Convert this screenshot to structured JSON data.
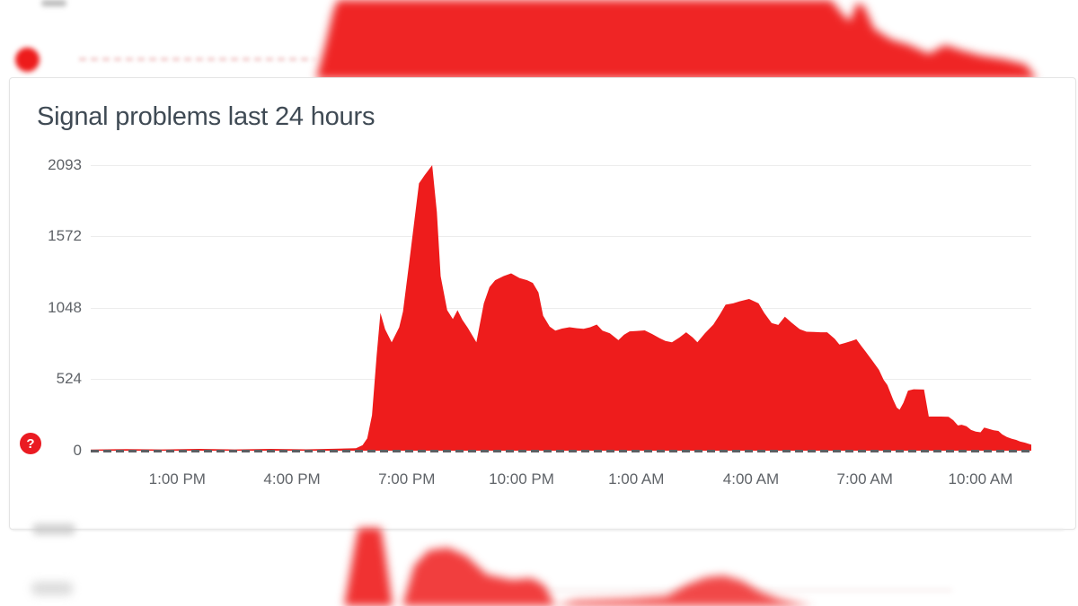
{
  "card": {
    "title": "Signal problems last 24 hours",
    "help_glyph": "?"
  },
  "colors": {
    "series_red": "#ee1c1c",
    "help_badge_red": "#ea1b22",
    "title_text": "#3f4a54",
    "tick_text": "#5f6368",
    "gridline": "#ececec",
    "baseline_dash": "#5c5e62",
    "card_border": "#e4e4e4"
  },
  "chart_data": {
    "type": "area",
    "title": "Signal problems last 24 hours",
    "xlabel": "",
    "ylabel": "",
    "ylim": [
      0,
      2093
    ],
    "grid": "horizontal",
    "legend": "none",
    "fill_color": "#ee1c1c",
    "baseline_style": "dashed dark gray zero line drawn over series",
    "y_tick_labels": [
      "2093",
      "1572",
      "1048",
      "524",
      "0"
    ],
    "y_tick_values": [
      2093,
      1572,
      1048,
      524,
      0
    ],
    "x_ticks": [
      {
        "f": 0.092,
        "label": "1:00 PM"
      },
      {
        "f": 0.214,
        "label": "4:00 PM"
      },
      {
        "f": 0.336,
        "label": "7:00 PM"
      },
      {
        "f": 0.458,
        "label": "10:00 PM"
      },
      {
        "f": 0.58,
        "label": "1:00 AM"
      },
      {
        "f": 0.702,
        "label": "4:00 AM"
      },
      {
        "f": 0.823,
        "label": "7:00 AM"
      },
      {
        "f": 0.946,
        "label": "10:00 AM"
      }
    ],
    "points_format": [
      "x_fraction_across_plot",
      "time",
      "reports"
    ],
    "points": [
      [
        0.0,
        "10:45 AM",
        8
      ],
      [
        0.038,
        "11:40 AM",
        12
      ],
      [
        0.076,
        "12:35 PM",
        9
      ],
      [
        0.115,
        "1:35 PM",
        13
      ],
      [
        0.153,
        "2:30 PM",
        9
      ],
      [
        0.191,
        "3:25 PM",
        13
      ],
      [
        0.229,
        "4:25 PM",
        10
      ],
      [
        0.258,
        "5:05 PM",
        14
      ],
      [
        0.282,
        "5:40 PM",
        18
      ],
      [
        0.289,
        "5:50 PM",
        40
      ],
      [
        0.294,
        "6:00 PM",
        90
      ],
      [
        0.299,
        "6:05 PM",
        260
      ],
      [
        0.304,
        "6:15 PM",
        700
      ],
      [
        0.308,
        "6:20 PM",
        1010
      ],
      [
        0.313,
        "6:25 PM",
        890
      ],
      [
        0.32,
        "6:35 PM",
        795
      ],
      [
        0.328,
        "6:50 PM",
        905
      ],
      [
        0.332,
        "6:55 PM",
        1020
      ],
      [
        0.339,
        "7:05 PM",
        1400
      ],
      [
        0.349,
        "7:20 PM",
        1960
      ],
      [
        0.355,
        "7:30 PM",
        2020
      ],
      [
        0.363,
        "7:40 PM",
        2093
      ],
      [
        0.368,
        "7:45 PM",
        1750
      ],
      [
        0.372,
        "7:55 PM",
        1280
      ],
      [
        0.379,
        "8:05 PM",
        1030
      ],
      [
        0.385,
        "8:15 PM",
        965
      ],
      [
        0.39,
        "8:20 PM",
        1030
      ],
      [
        0.395,
        "8:30 PM",
        960
      ],
      [
        0.401,
        "8:35 PM",
        900
      ],
      [
        0.41,
        "8:50 PM",
        795
      ],
      [
        0.418,
        "9:00 PM",
        1080
      ],
      [
        0.424,
        "9:10 PM",
        1200
      ],
      [
        0.43,
        "9:20 PM",
        1250
      ],
      [
        0.439,
        "9:35 PM",
        1280
      ],
      [
        0.447,
        "9:45 PM",
        1300
      ],
      [
        0.456,
        "10:00 PM",
        1265
      ],
      [
        0.464,
        "10:10 PM",
        1250
      ],
      [
        0.47,
        "10:20 PM",
        1230
      ],
      [
        0.476,
        "10:25 PM",
        1160
      ],
      [
        0.481,
        "10:35 PM",
        990
      ],
      [
        0.488,
        "10:45 PM",
        910
      ],
      [
        0.494,
        "10:55 PM",
        880
      ],
      [
        0.501,
        "11:05 PM",
        895
      ],
      [
        0.509,
        "11:15 PM",
        905
      ],
      [
        0.517,
        "11:25 PM",
        898
      ],
      [
        0.524,
        "11:40 PM",
        893
      ],
      [
        0.531,
        "11:50 PM",
        905
      ],
      [
        0.538,
        "12:00 AM",
        925
      ],
      [
        0.544,
        "12:10 AM",
        880
      ],
      [
        0.552,
        "12:20 AM",
        860
      ],
      [
        0.561,
        "12:30 AM",
        810
      ],
      [
        0.567,
        "12:40 AM",
        850
      ],
      [
        0.573,
        "12:50 AM",
        875
      ],
      [
        0.581,
        "1:00 AM",
        878
      ],
      [
        0.589,
        "1:15 AM",
        882
      ],
      [
        0.597,
        "1:25 AM",
        855
      ],
      [
        0.605,
        "1:35 AM",
        825
      ],
      [
        0.611,
        "1:45 AM",
        805
      ],
      [
        0.618,
        "1:55 AM",
        795
      ],
      [
        0.626,
        "2:10 AM",
        830
      ],
      [
        0.633,
        "2:20 AM",
        868
      ],
      [
        0.64,
        "2:30 AM",
        830
      ],
      [
        0.645,
        "2:35 AM",
        795
      ],
      [
        0.653,
        "2:50 AM",
        860
      ],
      [
        0.662,
        "3:00 AM",
        925
      ],
      [
        0.669,
        "3:10 AM",
        1000
      ],
      [
        0.675,
        "3:20 AM",
        1070
      ],
      [
        0.683,
        "3:30 AM",
        1080
      ],
      [
        0.69,
        "3:45 AM",
        1095
      ],
      [
        0.7,
        "4:00 AM",
        1112
      ],
      [
        0.71,
        "4:10 AM",
        1080
      ],
      [
        0.716,
        "4:20 AM",
        1010
      ],
      [
        0.724,
        "4:35 AM",
        935
      ],
      [
        0.731,
        "4:45 AM",
        922
      ],
      [
        0.738,
        "4:55 AM",
        982
      ],
      [
        0.745,
        "5:05 AM",
        940
      ],
      [
        0.754,
        "5:20 AM",
        890
      ],
      [
        0.761,
        "5:30 AM",
        872
      ],
      [
        0.769,
        "5:40 AM",
        870
      ],
      [
        0.776,
        "5:50 AM",
        868
      ],
      [
        0.783,
        "6:00 AM",
        868
      ],
      [
        0.791,
        "6:10 AM",
        820
      ],
      [
        0.796,
        "6:20 AM",
        778
      ],
      [
        0.802,
        "6:30 AM",
        790
      ],
      [
        0.809,
        "6:40 AM",
        805
      ],
      [
        0.814,
        "6:45 AM",
        817
      ],
      [
        0.819,
        "6:55 AM",
        770
      ],
      [
        0.824,
        "7:00 AM",
        725
      ],
      [
        0.831,
        "7:10 AM",
        660
      ],
      [
        0.838,
        "7:20 AM",
        593
      ],
      [
        0.843,
        "7:30 AM",
        520
      ],
      [
        0.847,
        "7:35 AM",
        481
      ],
      [
        0.853,
        "7:45 AM",
        376
      ],
      [
        0.857,
        "7:50 AM",
        316
      ],
      [
        0.86,
        "7:55 AM",
        300
      ],
      [
        0.864,
        "8:00 AM",
        350
      ],
      [
        0.869,
        "8:10 AM",
        440
      ],
      [
        0.875,
        "8:15 AM",
        450
      ],
      [
        0.886,
        "8:35 AM",
        448
      ],
      [
        0.891,
        "8:40 AM",
        250
      ],
      [
        0.904,
        "9:00 AM",
        250
      ],
      [
        0.912,
        "9:10 AM",
        248
      ],
      [
        0.917,
        "9:20 AM",
        224
      ],
      [
        0.922,
        "9:25 AM",
        185
      ],
      [
        0.926,
        "9:30 AM",
        190
      ],
      [
        0.931,
        "9:40 AM",
        180
      ],
      [
        0.936,
        "9:45 AM",
        152
      ],
      [
        0.941,
        "9:55 AM",
        140
      ],
      [
        0.946,
        "10:00 AM",
        135
      ],
      [
        0.95,
        "10:05 AM",
        170
      ],
      [
        0.955,
        "10:15 AM",
        160
      ],
      [
        0.96,
        "10:20 AM",
        150
      ],
      [
        0.965,
        "10:30 AM",
        145
      ],
      [
        0.969,
        "10:35 AM",
        120
      ],
      [
        0.974,
        "10:45 AM",
        100
      ],
      [
        0.979,
        "10:50 AM",
        88
      ],
      [
        0.984,
        "10:55 AM",
        79
      ],
      [
        0.988,
        "11:05 AM",
        68
      ],
      [
        0.993,
        "11:10 AM",
        59
      ],
      [
        1.0,
        "11:20 AM",
        45
      ]
    ]
  }
}
